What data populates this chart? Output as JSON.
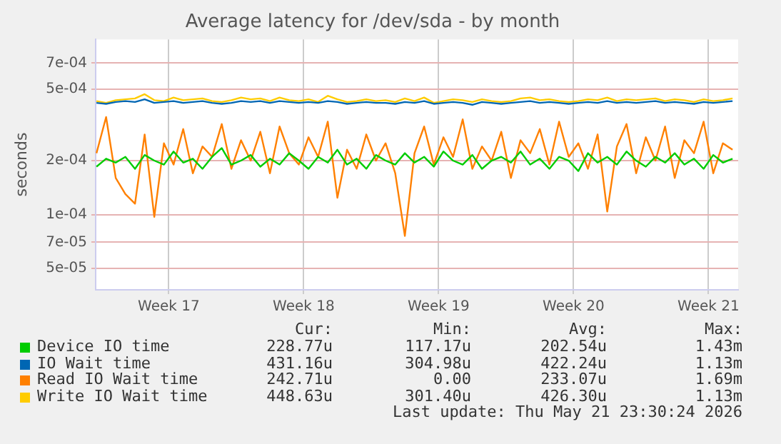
{
  "chart_data": {
    "type": "line",
    "title": "Average latency for /dev/sda - by month",
    "ylabel": "seconds",
    "log": "y",
    "grid": true,
    "legend": "bottom",
    "marker": "none",
    "line_style": "solid",
    "x": [
      "2026-04-19T18:00",
      "2026-04-20T06:00",
      "2026-04-20T18:00",
      "2026-04-21T06:00",
      "2026-04-21T18:00",
      "2026-04-22T06:00",
      "2026-04-22T18:00",
      "2026-04-23T06:00",
      "2026-04-23T18:00",
      "2026-04-24T06:00",
      "2026-04-24T18:00",
      "2026-04-25T06:00",
      "2026-04-25T18:00",
      "2026-04-26T06:00",
      "2026-04-26T18:00",
      "2026-04-27T06:00",
      "2026-04-27T18:00",
      "2026-04-28T06:00",
      "2026-04-28T18:00",
      "2026-04-29T06:00",
      "2026-04-29T18:00",
      "2026-04-30T06:00",
      "2026-04-30T18:00",
      "2026-05-01T06:00",
      "2026-05-01T18:00",
      "2026-05-02T06:00",
      "2026-05-02T18:00",
      "2026-05-03T06:00",
      "2026-05-03T18:00",
      "2026-05-04T06:00",
      "2026-05-04T18:00",
      "2026-05-05T06:00",
      "2026-05-05T18:00",
      "2026-05-06T06:00",
      "2026-05-06T18:00",
      "2026-05-07T06:00",
      "2026-05-07T18:00",
      "2026-05-08T06:00",
      "2026-05-08T18:00",
      "2026-05-09T06:00",
      "2026-05-09T18:00",
      "2026-05-10T06:00",
      "2026-05-10T18:00",
      "2026-05-11T06:00",
      "2026-05-11T18:00",
      "2026-05-12T06:00",
      "2026-05-12T18:00",
      "2026-05-13T06:00",
      "2026-05-13T18:00",
      "2026-05-14T06:00",
      "2026-05-14T18:00",
      "2026-05-15T06:00",
      "2026-05-15T18:00",
      "2026-05-16T06:00",
      "2026-05-16T18:00",
      "2026-05-17T06:00",
      "2026-05-17T18:00",
      "2026-05-18T06:00",
      "2026-05-18T18:00",
      "2026-05-19T06:00",
      "2026-05-19T18:00",
      "2026-05-20T06:00",
      "2026-05-20T18:00",
      "2026-05-21T06:00",
      "2026-05-21T18:00",
      "2026-05-22T06:00",
      "2026-05-22T18:00"
    ],
    "xlim": [
      "2026-04-19T17:00",
      "2026-05-23T01:00"
    ],
    "xticks": [
      {
        "value": "2026-04-23T12:00",
        "label": "Week 17"
      },
      {
        "value": "2026-04-30T12:00",
        "label": "Week 18"
      },
      {
        "value": "2026-05-07T12:00",
        "label": "Week 19"
      },
      {
        "value": "2026-05-14T12:00",
        "label": "Week 20"
      },
      {
        "value": "2026-05-21T12:00",
        "label": "Week 21"
      }
    ],
    "ylim": [
      3.8e-05,
      0.00095
    ],
    "yticks": [
      {
        "value": 5e-05,
        "label": "5e-05"
      },
      {
        "value": 7e-05,
        "label": "7e-05"
      },
      {
        "value": 0.0001,
        "label": "1e-04"
      },
      {
        "value": 0.0002,
        "label": "2e-04"
      },
      {
        "value": 0.0005,
        "label": "5e-04"
      },
      {
        "value": 0.0007,
        "label": "7e-04"
      }
    ],
    "series": [
      {
        "name": "Device IO time",
        "color": "#00cc00",
        "values": [
          0.000185,
          0.000205,
          0.000195,
          0.00021,
          0.00018,
          0.000215,
          0.0002,
          0.00019,
          0.000225,
          0.000195,
          0.000205,
          0.00018,
          0.00021,
          0.000235,
          0.00019,
          0.0002,
          0.000215,
          0.000185,
          0.000205,
          0.00019,
          0.00022,
          0.0002,
          0.00018,
          0.00021,
          0.000195,
          0.00023,
          0.00019,
          0.000205,
          0.00018,
          0.000215,
          0.0002,
          0.00019,
          0.00022,
          0.000195,
          0.00021,
          0.000185,
          0.000225,
          0.0002,
          0.00019,
          0.000215,
          0.00018,
          0.0002,
          0.00021,
          0.000195,
          0.000225,
          0.00019,
          0.000205,
          0.00018,
          0.00021,
          0.0002,
          0.000175,
          0.00022,
          0.000195,
          0.00021,
          0.00019,
          0.000225,
          0.0002,
          0.000185,
          0.00021,
          0.000195,
          0.00022,
          0.00019,
          0.000205,
          0.00018,
          0.000215,
          0.000195,
          0.000205
        ]
      },
      {
        "name": "IO Wait time",
        "color": "#0066b3",
        "values": [
          0.00042,
          0.000415,
          0.000425,
          0.00043,
          0.000425,
          0.00044,
          0.00042,
          0.000425,
          0.00043,
          0.00042,
          0.000425,
          0.00043,
          0.00042,
          0.000415,
          0.00042,
          0.00043,
          0.000425,
          0.00043,
          0.00042,
          0.00043,
          0.000425,
          0.00042,
          0.000425,
          0.00042,
          0.00043,
          0.000425,
          0.000415,
          0.00042,
          0.000425,
          0.00042,
          0.00042,
          0.000415,
          0.000425,
          0.00042,
          0.00043,
          0.000415,
          0.00042,
          0.000425,
          0.00042,
          0.00041,
          0.000425,
          0.00042,
          0.000415,
          0.00042,
          0.000425,
          0.00043,
          0.00042,
          0.000425,
          0.00042,
          0.000415,
          0.00042,
          0.000425,
          0.00042,
          0.00043,
          0.00042,
          0.000425,
          0.00042,
          0.000425,
          0.00043,
          0.00042,
          0.000425,
          0.00042,
          0.000415,
          0.000425,
          0.00042,
          0.000425,
          0.00043
        ]
      },
      {
        "name": "Read IO Wait time",
        "color": "#ff8000",
        "values": [
          0.00022,
          0.00035,
          0.00016,
          0.00013,
          0.000115,
          0.00028,
          9.7e-05,
          0.00025,
          0.00019,
          0.0003,
          0.00017,
          0.00024,
          0.00021,
          0.00032,
          0.00018,
          0.00026,
          0.0002,
          0.00029,
          0.00017,
          0.00031,
          0.00022,
          0.00019,
          0.00027,
          0.00021,
          0.00033,
          0.000124,
          0.00023,
          0.00018,
          0.00028,
          0.0002,
          0.00025,
          0.00017,
          7.6e-05,
          0.00022,
          0.00031,
          0.00019,
          0.00027,
          0.00021,
          0.00034,
          0.00018,
          0.00024,
          0.0002,
          0.00029,
          0.00016,
          0.00026,
          0.00022,
          0.0003,
          0.00019,
          0.00033,
          0.00021,
          0.00025,
          0.00018,
          0.00028,
          0.000104,
          0.00024,
          0.00032,
          0.00017,
          0.00027,
          0.0002,
          0.00031,
          0.00016,
          0.00026,
          0.00022,
          0.00033,
          0.00017,
          0.00025,
          0.00023
        ]
      },
      {
        "name": "Write IO Wait time",
        "color": "#ffcc00",
        "values": [
          0.00043,
          0.00042,
          0.000435,
          0.00044,
          0.000445,
          0.00047,
          0.000435,
          0.00043,
          0.00045,
          0.000435,
          0.00044,
          0.000445,
          0.00043,
          0.000425,
          0.000435,
          0.00045,
          0.00044,
          0.000445,
          0.00043,
          0.00045,
          0.000435,
          0.00043,
          0.00044,
          0.000425,
          0.00046,
          0.00044,
          0.000425,
          0.00043,
          0.00044,
          0.00043,
          0.000435,
          0.000425,
          0.000445,
          0.00043,
          0.00045,
          0.00042,
          0.00043,
          0.00044,
          0.000435,
          0.000425,
          0.00044,
          0.00043,
          0.000425,
          0.00043,
          0.000445,
          0.00045,
          0.000435,
          0.00044,
          0.00043,
          0.000425,
          0.00043,
          0.00044,
          0.000435,
          0.00045,
          0.00043,
          0.00044,
          0.000435,
          0.00044,
          0.000445,
          0.00043,
          0.00044,
          0.000435,
          0.000425,
          0.00044,
          0.00043,
          0.000435,
          0.000445
        ]
      }
    ],
    "annotations": [
      "Cur:",
      "Min:",
      "Avg:",
      "Max:",
      "228.77u",
      "117.17u",
      "202.54u",
      "1.43m",
      "431.16u",
      "304.98u",
      "422.24u",
      "1.13m",
      "242.71u",
      "0.00",
      "233.07u",
      "1.69m",
      "448.63u",
      "301.40u",
      "426.30u",
      "1.13m",
      "Last update: Thu May 21 23:30:24 2026"
    ]
  }
}
